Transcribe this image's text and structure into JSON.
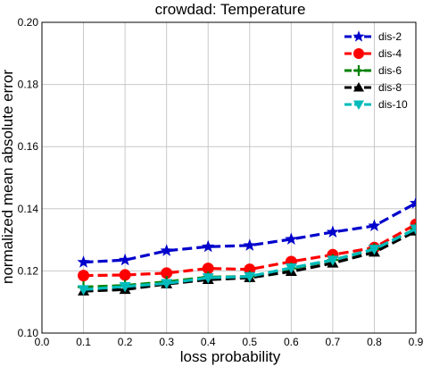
{
  "chart_data": {
    "type": "line",
    "title": "crowdad: Temperature",
    "xlabel": "loss probability",
    "ylabel": "normalized mean absolute error",
    "xlim": [
      0.0,
      0.9
    ],
    "ylim": [
      0.1,
      0.2
    ],
    "xticks": [
      "0.0",
      "0.1",
      "0.2",
      "0.3",
      "0.4",
      "0.5",
      "0.6",
      "0.7",
      "0.8",
      "0.9"
    ],
    "yticks": [
      "0.10",
      "0.12",
      "0.14",
      "0.16",
      "0.18",
      "0.20"
    ],
    "grid": true,
    "legend_position": "top-right",
    "x": [
      0.1,
      0.2,
      0.3,
      0.4,
      0.5,
      0.6,
      0.7,
      0.8,
      0.9
    ],
    "series": [
      {
        "name": "dis-2",
        "color": "#0000cc",
        "marker": "star",
        "values": [
          0.1228,
          0.1235,
          0.1265,
          0.1278,
          0.1282,
          0.1302,
          0.1325,
          0.1345,
          0.1418
        ]
      },
      {
        "name": "dis-4",
        "color": "#ff0000",
        "marker": "circle",
        "values": [
          0.1185,
          0.1187,
          0.1193,
          0.1208,
          0.1205,
          0.123,
          0.1252,
          0.1275,
          0.135
        ]
      },
      {
        "name": "dis-6",
        "color": "#008000",
        "marker": "plus",
        "values": [
          0.1148,
          0.1153,
          0.1165,
          0.118,
          0.1182,
          0.1208,
          0.1235,
          0.127,
          0.1335
        ]
      },
      {
        "name": "dis-8",
        "color": "#000000",
        "marker": "triangle-up",
        "values": [
          0.1135,
          0.114,
          0.1158,
          0.1172,
          0.1178,
          0.1198,
          0.1225,
          0.126,
          0.1328
        ]
      },
      {
        "name": "dis-10",
        "color": "#00bbbb",
        "marker": "triangle-down",
        "values": [
          0.114,
          0.115,
          0.116,
          0.1178,
          0.1182,
          0.121,
          0.1235,
          0.127,
          0.1335
        ]
      }
    ]
  }
}
